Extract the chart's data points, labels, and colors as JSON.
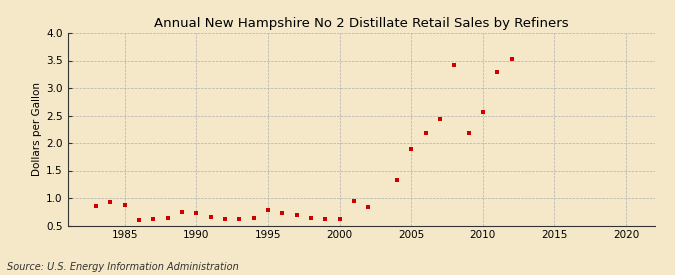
{
  "title": "Annual New Hampshire No 2 Distillate Retail Sales by Refiners",
  "ylabel": "Dollars per Gallon",
  "source": "Source: U.S. Energy Information Administration",
  "background_color": "#f5e8c8",
  "plot_bg_color": "#f5e8c8",
  "marker_color": "#cc0000",
  "xlim": [
    1981,
    2022
  ],
  "ylim": [
    0.5,
    4.0
  ],
  "xticks": [
    1985,
    1990,
    1995,
    2000,
    2005,
    2010,
    2015,
    2020
  ],
  "yticks": [
    0.5,
    1.0,
    1.5,
    2.0,
    2.5,
    3.0,
    3.5,
    4.0
  ],
  "years": [
    1983,
    1984,
    1985,
    1986,
    1987,
    1988,
    1989,
    1990,
    1991,
    1992,
    1993,
    1994,
    1995,
    1996,
    1997,
    1998,
    1999,
    2000,
    2001,
    2002,
    2004,
    2005,
    2006,
    2007,
    2008,
    2009,
    2010,
    2011,
    2012
  ],
  "values": [
    0.85,
    0.92,
    0.88,
    0.6,
    0.62,
    0.63,
    0.75,
    0.72,
    0.65,
    0.62,
    0.62,
    0.63,
    0.78,
    0.72,
    0.7,
    0.63,
    0.62,
    0.62,
    0.95,
    0.84,
    1.33,
    1.9,
    2.19,
    2.43,
    3.42,
    2.18,
    2.57,
    3.3,
    3.52
  ],
  "title_fontsize": 9.5,
  "ylabel_fontsize": 7.5,
  "tick_fontsize": 7.5,
  "source_fontsize": 7
}
